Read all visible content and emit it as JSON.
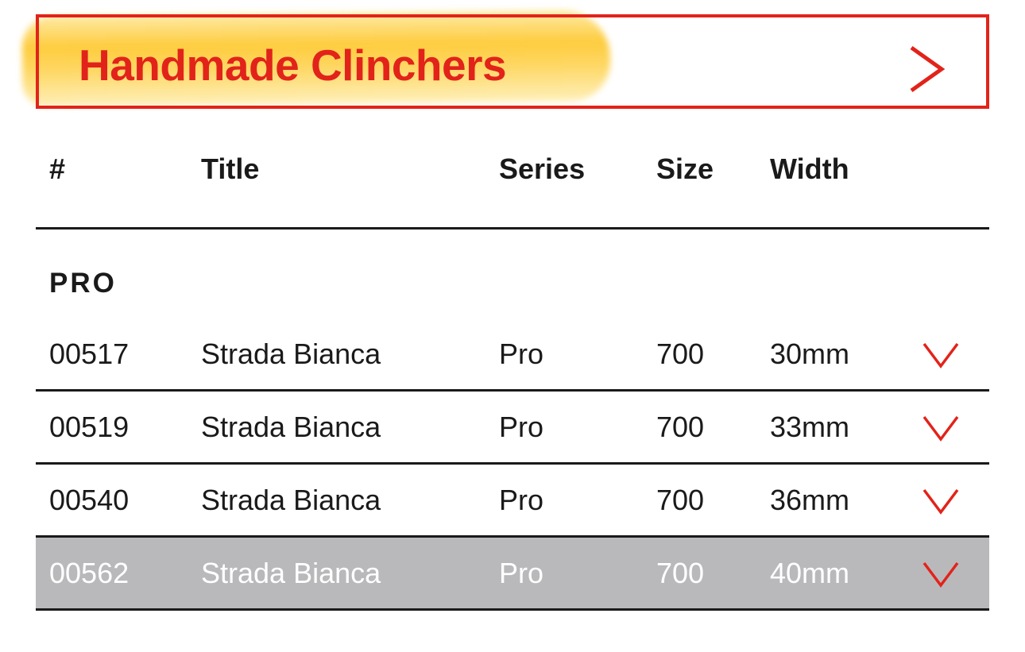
{
  "header": {
    "title": "Handmade Clinchers",
    "icon": "chevron-right-icon",
    "accent": "#e2231a",
    "highlight": "#fdc628"
  },
  "columns": [
    "#",
    "Title",
    "Series",
    "Size",
    "Width"
  ],
  "group": {
    "label": "PRO"
  },
  "rows": [
    {
      "number": "00517",
      "title": "Strada Bianca",
      "series": "Pro",
      "size": "700",
      "width": "30mm",
      "selected": false
    },
    {
      "number": "00519",
      "title": "Strada Bianca",
      "series": "Pro",
      "size": "700",
      "width": "33mm",
      "selected": false
    },
    {
      "number": "00540",
      "title": "Strada Bianca",
      "series": "Pro",
      "size": "700",
      "width": "36mm",
      "selected": false
    },
    {
      "number": "00562",
      "title": "Strada Bianca",
      "series": "Pro",
      "size": "700",
      "width": "40mm",
      "selected": true
    }
  ],
  "selected_row_color": "#b9b9bc"
}
